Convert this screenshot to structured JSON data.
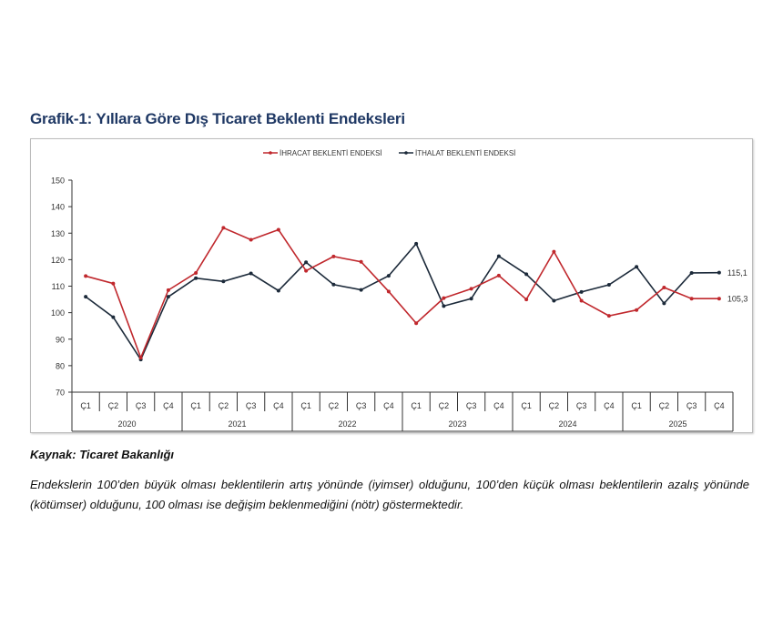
{
  "title": "Grafik-1: Yıllara Göre Dış Ticaret Beklenti Endeksleri",
  "source": "Kaynak: Ticaret Bakanlığı",
  "note": "Endekslerin 100’den büyük olması beklentilerin artış yönünde (iyimser) olduğunu, 100’den küçük olması beklentilerin azalış yönünde (kötümser) olduğunu, 100 olması ise değişim beklenmediğini (nötr) göstermektedir.",
  "chart_data": {
    "type": "line",
    "title": "Grafik-1: Yıllara Göre Dış Ticaret Beklenti Endeksleri",
    "years": [
      "2020",
      "2021",
      "2022",
      "2023",
      "2024",
      "2025"
    ],
    "quarters": [
      "Ç1",
      "Ç2",
      "Ç3",
      "Ç4"
    ],
    "ylim": [
      70,
      150
    ],
    "yticks": [
      "70",
      "80",
      "90",
      "100",
      "110",
      "120",
      "130",
      "140",
      "150"
    ],
    "legend": "top",
    "grid": false,
    "series": [
      {
        "name": "İHRACAT BEKLENTİ ENDEKSİ",
        "color": "#c0282d",
        "values": [
          113.8,
          111,
          83,
          108.5,
          115,
          132,
          127.5,
          131.3,
          115.8,
          121.2,
          119.2,
          108,
          96,
          105.5,
          109,
          114,
          105,
          123,
          104.5,
          98.8,
          101,
          109.5,
          105.3,
          105.3
        ],
        "end_label": "105,3"
      },
      {
        "name": "İTHALAT BEKLENTİ ENDEKSİ",
        "color": "#1c2a3a",
        "values": [
          106,
          98.3,
          82.3,
          106,
          113,
          111.8,
          114.8,
          108.3,
          119,
          110.6,
          108.6,
          113.9,
          126,
          102.5,
          105.3,
          121.3,
          114.5,
          104.5,
          107.8,
          110.5,
          117.3,
          103.5,
          115,
          115.1
        ],
        "end_label": "115,1"
      }
    ]
  }
}
